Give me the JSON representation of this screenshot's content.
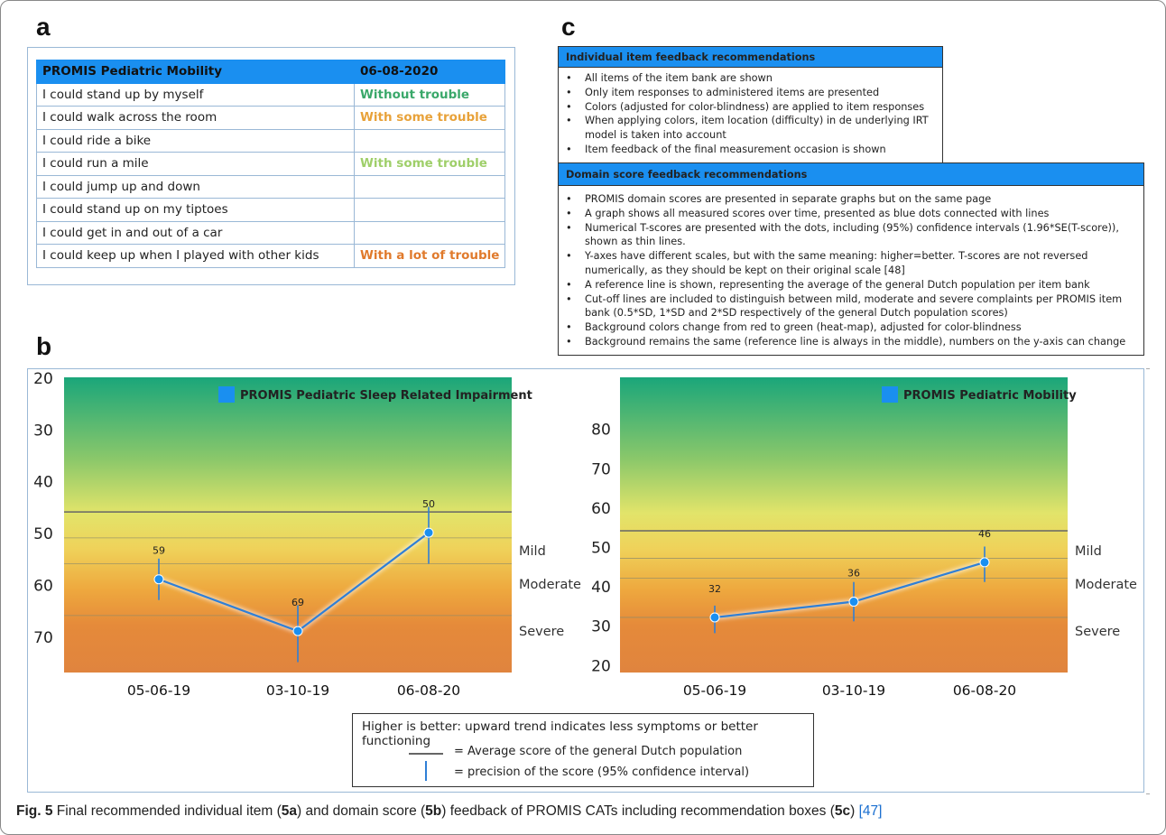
{
  "panel_labels": {
    "a": "a",
    "b": "b",
    "c": "c"
  },
  "panel_a": {
    "header": {
      "title": "PROMIS Pediatric Mobility",
      "date": "06-08-2020"
    },
    "rows": [
      {
        "item": "I could stand up by myself",
        "response": "Without trouble",
        "color": "#3aa86a"
      },
      {
        "item": "I could walk across the room",
        "response": "With some trouble",
        "color": "#e8a23a"
      },
      {
        "item": "I could ride a bike",
        "response": "",
        "color": ""
      },
      {
        "item": "I could run a mile",
        "response": "With some trouble",
        "color": "#9fcf6a"
      },
      {
        "item": "I could jump up and down",
        "response": "",
        "color": ""
      },
      {
        "item": "I could stand up on my tiptoes",
        "response": "",
        "color": ""
      },
      {
        "item": "I could get in and out of a car",
        "response": "",
        "color": ""
      },
      {
        "item": "I could keep up when I played with other kids",
        "response": "With a lot of trouble",
        "color": "#e07a2c"
      }
    ]
  },
  "panel_c": {
    "box1": {
      "title": "Individual item feedback recommendations",
      "items": [
        "All items of the item bank are shown",
        "Only item responses to administered items are presented",
        "Colors (adjusted for color-blindness) are applied to item responses",
        "When applying colors, item location (difficulty) in de underlying IRT model is taken into account",
        "Item feedback of the final measurement occasion is shown"
      ]
    },
    "box2": {
      "title": "Domain score feedback recommendations",
      "items": [
        "PROMIS domain scores are presented in separate graphs but on the same page",
        "A graph shows all measured scores over time, presented as blue dots connected with lines",
        "Numerical T-scores are presented with the dots, including (95%) confidence intervals (1.96*SE(T-score)), shown as thin lines.",
        "Y-axes have different scales, but with the same meaning: higher=better. T-scores are not reversed numerically, as they should be kept on their original scale [48]",
        "A reference line is shown, representing the average of the general Dutch population per item bank",
        "Cut-off lines are included to distinguish between mild, moderate and severe complaints per PROMIS item bank (0.5*SD, 1*SD and 2*SD respectively of the general Dutch population scores)",
        "Background colors change from red to green (heat-map), adjusted for color-blindness",
        "Background remains the same (reference line is always in the middle), numbers on the y-axis can change"
      ]
    }
  },
  "chart_data": [
    {
      "type": "line",
      "title": "PROMIS Pediatric Sleep Related Impairment",
      "categories": [
        "05-06-19",
        "03-10-19",
        "06-08-20"
      ],
      "values": [
        59,
        69,
        50
      ],
      "ci_low": [
        55,
        64,
        45
      ],
      "ci_high": [
        63,
        75,
        56
      ],
      "y_ticks": [
        20,
        30,
        40,
        50,
        60,
        70
      ],
      "ylim": [
        20,
        77
      ],
      "y_reversed": true,
      "reference_line": 46,
      "cutoffs": [
        51,
        56,
        66
      ],
      "zone_labels": [
        "Mild",
        "Moderate",
        "Severe"
      ],
      "line_color": "#2f7fd6",
      "legend_color": "#1a8ff0"
    },
    {
      "type": "line",
      "title": "PROMIS Pediatric Mobility",
      "categories": [
        "05-06-19",
        "03-10-19",
        "06-08-20"
      ],
      "values": [
        32,
        36,
        46
      ],
      "ci_low": [
        28,
        31,
        41
      ],
      "ci_high": [
        35,
        41,
        50
      ],
      "y_ticks": [
        80,
        70,
        60,
        50,
        40,
        30,
        20
      ],
      "ylim": [
        18,
        93
      ],
      "y_reversed": false,
      "reference_line": 54,
      "cutoffs": [
        47,
        42,
        32
      ],
      "zone_labels": [
        "Mild",
        "Moderate",
        "Severe"
      ],
      "line_color": "#2f7fd6",
      "legend_color": "#1a8ff0"
    }
  ],
  "legend": {
    "title": "Higher is better: upward trend indicates less symptoms or better functioning",
    "avg_label": "= Average score of the general Dutch population",
    "precision_label": "= precision of the score (95% confidence interval)"
  },
  "caption": {
    "fig": "Fig. 5",
    "t1": " Final recommended individual item (",
    "b1": "5a",
    "t2": ") and domain score (",
    "b2": "5b",
    "t3": ") feedback of PROMIS CATs including recommendation boxes (",
    "b3": "5c",
    "t4": ") ",
    "ref": "[47]"
  }
}
